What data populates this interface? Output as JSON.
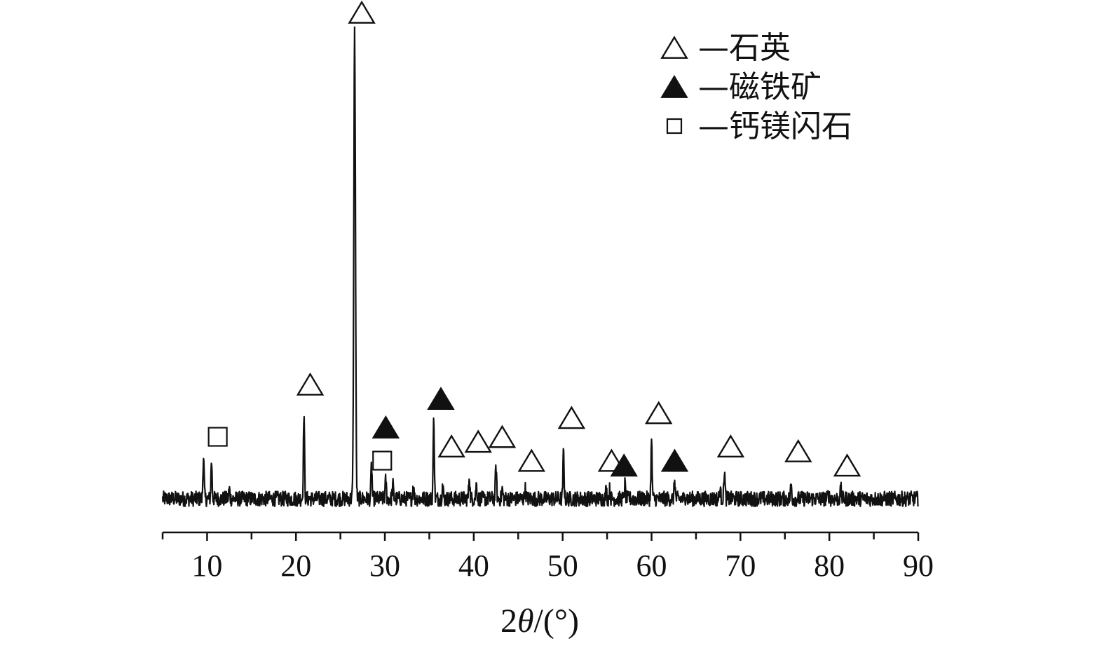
{
  "chart_data": {
    "type": "line",
    "title": "",
    "xlabel_prefix": "2",
    "xlabel_symbol": "θ",
    "xlabel_suffix": "/(°)",
    "ylabel": "",
    "xlim": [
      5,
      90
    ],
    "ylim": [
      0,
      100
    ],
    "grid": false,
    "x_ticks": [
      10,
      20,
      30,
      40,
      50,
      60,
      70,
      80,
      90
    ],
    "legend_position": "top-right",
    "legend": [
      {
        "marker": "open-triangle",
        "label": "—石英"
      },
      {
        "marker": "filled-triangle",
        "label": "—磁铁矿"
      },
      {
        "marker": "open-square",
        "label": "—钙镁闪石"
      }
    ],
    "baseline": 2,
    "noise_amplitude": 1.6,
    "series": [
      {
        "peaks": [
          {
            "x": 9.6,
            "y": 11
          },
          {
            "x": 10.5,
            "y": 10
          },
          {
            "x": 12.5,
            "y": 4
          },
          {
            "x": 20.9,
            "y": 20
          },
          {
            "x": 26.6,
            "y": 100
          },
          {
            "x": 28.5,
            "y": 9
          },
          {
            "x": 30.1,
            "y": 6
          },
          {
            "x": 30.9,
            "y": 5
          },
          {
            "x": 33.2,
            "y": 5
          },
          {
            "x": 35.5,
            "y": 19
          },
          {
            "x": 36.5,
            "y": 5
          },
          {
            "x": 39.5,
            "y": 7
          },
          {
            "x": 40.3,
            "y": 5
          },
          {
            "x": 42.5,
            "y": 9
          },
          {
            "x": 43.2,
            "y": 4
          },
          {
            "x": 45.8,
            "y": 4
          },
          {
            "x": 50.1,
            "y": 12
          },
          {
            "x": 54.9,
            "y": 4
          },
          {
            "x": 55.3,
            "y": 4
          },
          {
            "x": 57.0,
            "y": 5
          },
          {
            "x": 60.0,
            "y": 14
          },
          {
            "x": 62.6,
            "y": 6
          },
          {
            "x": 63.9,
            "y": 3
          },
          {
            "x": 67.7,
            "y": 4
          },
          {
            "x": 68.2,
            "y": 8
          },
          {
            "x": 75.7,
            "y": 5
          },
          {
            "x": 79.9,
            "y": 3
          },
          {
            "x": 81.3,
            "y": 4
          }
        ]
      }
    ],
    "markers": [
      {
        "type": "open-square",
        "x": 11.2,
        "y": 15
      },
      {
        "type": "open-triangle",
        "x": 21.6,
        "y": 26
      },
      {
        "type": "open-triangle",
        "x": 27.4,
        "y": 104
      },
      {
        "type": "open-square",
        "x": 29.7,
        "y": 10
      },
      {
        "type": "filled-triangle",
        "x": 30.1,
        "y": 17
      },
      {
        "type": "filled-triangle",
        "x": 36.3,
        "y": 23
      },
      {
        "type": "open-triangle",
        "x": 37.5,
        "y": 13
      },
      {
        "type": "open-triangle",
        "x": 40.5,
        "y": 14
      },
      {
        "type": "open-triangle",
        "x": 43.2,
        "y": 15
      },
      {
        "type": "open-triangle",
        "x": 46.5,
        "y": 10
      },
      {
        "type": "open-triangle",
        "x": 51.0,
        "y": 19
      },
      {
        "type": "open-triangle",
        "x": 55.5,
        "y": 10
      },
      {
        "type": "filled-triangle",
        "x": 56.9,
        "y": 9
      },
      {
        "type": "open-triangle",
        "x": 60.8,
        "y": 20
      },
      {
        "type": "filled-triangle",
        "x": 62.6,
        "y": 10
      },
      {
        "type": "open-triangle",
        "x": 68.9,
        "y": 13
      },
      {
        "type": "open-triangle",
        "x": 76.5,
        "y": 12
      },
      {
        "type": "open-triangle",
        "x": 82.0,
        "y": 9
      }
    ]
  }
}
